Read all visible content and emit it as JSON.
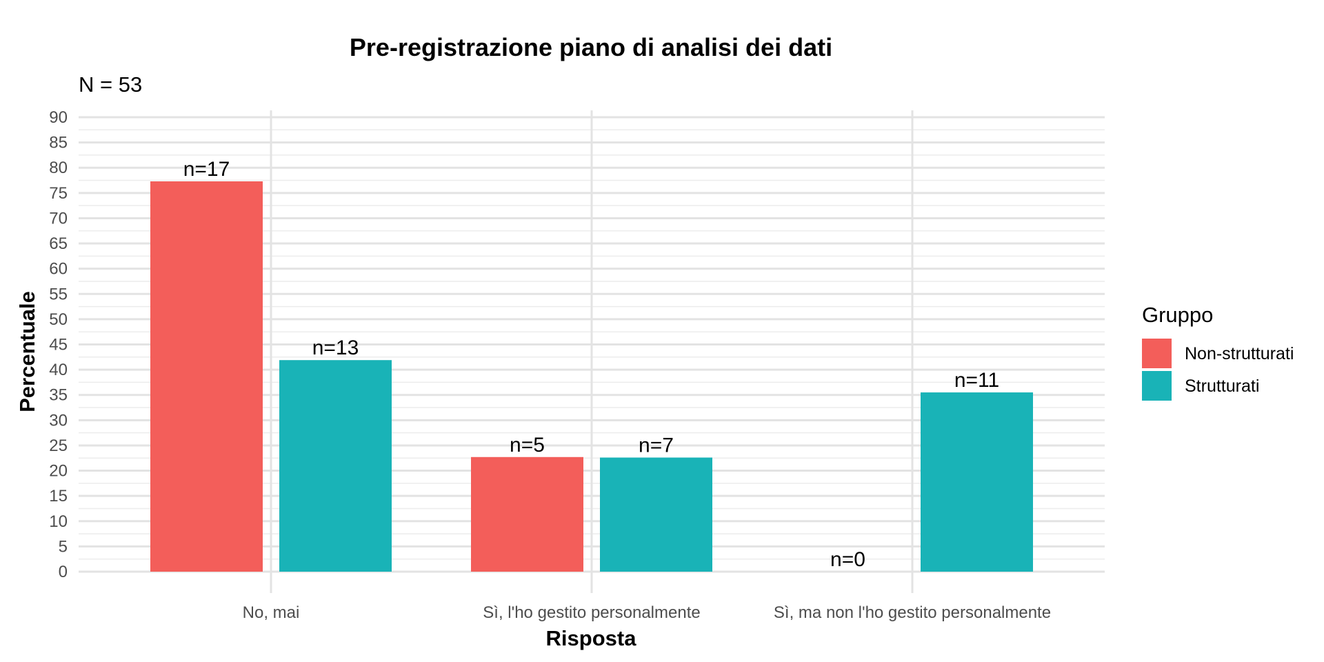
{
  "chart_data": {
    "type": "bar",
    "title": "Pre-registrazione piano di analisi dei dati",
    "subtitle": "N = 53",
    "xlabel": "Risposta",
    "ylabel": "Percentuale",
    "categories": [
      "No, mai",
      "Sì, l'ho gestito personalmente",
      "Sì, ma non l'ho gestito personalmente"
    ],
    "series": [
      {
        "name": "Non-strutturati",
        "color": "#F35E5A",
        "values": [
          77.3,
          22.7,
          0
        ],
        "labels": [
          "n=17",
          "n=5",
          "n=0"
        ]
      },
      {
        "name": "Strutturati",
        "color": "#19B3B7",
        "values": [
          41.9,
          22.6,
          35.5
        ],
        "labels": [
          "n=13",
          "n=7",
          "n=11"
        ]
      }
    ],
    "ylim": [
      0,
      90
    ],
    "yticks": [
      0,
      5,
      10,
      15,
      20,
      25,
      30,
      35,
      40,
      45,
      50,
      55,
      60,
      65,
      70,
      75,
      80,
      85,
      90
    ],
    "grid": true,
    "legend": {
      "title": "Gruppo",
      "position": "right"
    }
  }
}
